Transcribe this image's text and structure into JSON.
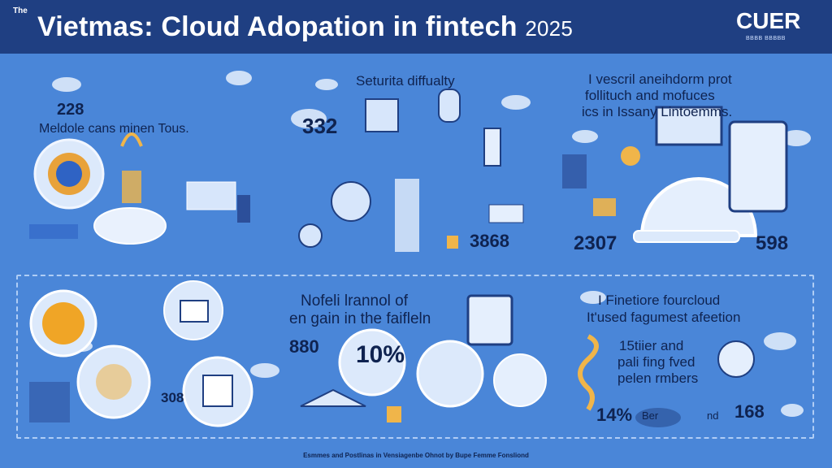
{
  "header": {
    "tag": "The",
    "title_main": "Vietmas: Cloud Adopation in fintech",
    "title_year": "2025",
    "logo_text": "CUER",
    "logo_sub": "ВВВВ ВВВВВ"
  },
  "top_left": {
    "stat": "228",
    "caption": "Meldole cans minen Tous."
  },
  "top_middle": {
    "heading": "Seturita diffualty",
    "stat_a": "332",
    "stat_b": "3868"
  },
  "top_right": {
    "heading_l1": "I vescril aneihdorm prot",
    "heading_l2": "follituch and mofuces",
    "heading_l3": "ics in Issany Lintoemms.",
    "stat_a": "2307",
    "stat_b": "598"
  },
  "bottom_middle": {
    "heading_l1": "Nofeli lrannol of",
    "heading_l2": "en gain in the faifleln",
    "stat_a": "880",
    "stat_b": "10%"
  },
  "bottom_left": {
    "stat": "308"
  },
  "bottom_right": {
    "heading_l1": "I Finetiore fourcloud",
    "heading_l2": "It'used fagumest afeetion",
    "body_l1": "15tiier and",
    "body_l2": "pali fing fved",
    "body_l3": "pelen rmbers",
    "stat_a": "14%",
    "stat_label": "Ber",
    "stat_label2": "nd",
    "stat_b": "168"
  },
  "footer": {
    "text": "Esmmes and Postlinas in Vensiagenbe Ohnot by Bupe Femme Fonsliond"
  }
}
